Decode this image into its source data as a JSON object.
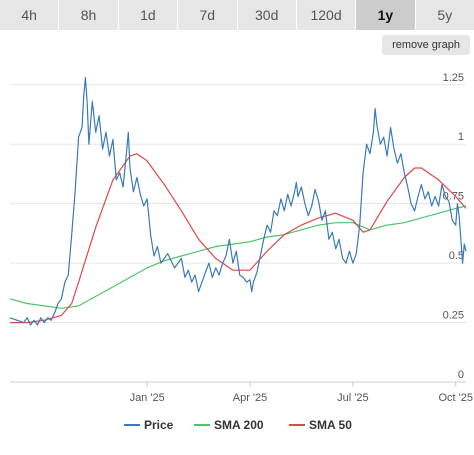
{
  "tabs": [
    {
      "label": "4h"
    },
    {
      "label": "8h"
    },
    {
      "label": "1d"
    },
    {
      "label": "7d"
    },
    {
      "label": "30d"
    },
    {
      "label": "120d"
    },
    {
      "label": "1y",
      "active": true
    },
    {
      "label": "5y"
    }
  ],
  "remove_graph_label": "remove graph",
  "chart_data": {
    "type": "line",
    "y_ticks": [
      "0",
      "0.25",
      "0.5",
      "0.75",
      "1",
      "1.25"
    ],
    "ylim": [
      0,
      1.35
    ],
    "x_labels": [
      {
        "label": "Jan '25",
        "x": 4.0
      },
      {
        "label": "Apr '25",
        "x": 7.0
      },
      {
        "label": "Jul '25",
        "x": 10.0
      },
      {
        "label": "Oct '25",
        "x": 13.0
      }
    ],
    "xlim": [
      0,
      13.3
    ],
    "grid": true,
    "legend_position": "bottom",
    "series": [
      {
        "name": "Price",
        "color": "#3a7ab8",
        "points": [
          [
            0,
            0.27
          ],
          [
            0.2,
            0.26
          ],
          [
            0.4,
            0.25
          ],
          [
            0.5,
            0.27
          ],
          [
            0.6,
            0.24
          ],
          [
            0.7,
            0.26
          ],
          [
            0.8,
            0.24
          ],
          [
            0.9,
            0.27
          ],
          [
            1.0,
            0.25
          ],
          [
            1.1,
            0.27
          ],
          [
            1.2,
            0.26
          ],
          [
            1.3,
            0.29
          ],
          [
            1.4,
            0.33
          ],
          [
            1.5,
            0.35
          ],
          [
            1.6,
            0.42
          ],
          [
            1.7,
            0.45
          ],
          [
            1.8,
            0.62
          ],
          [
            1.9,
            0.8
          ],
          [
            2.0,
            1.03
          ],
          [
            2.1,
            1.07
          ],
          [
            2.15,
            1.2
          ],
          [
            2.2,
            1.28
          ],
          [
            2.25,
            1.18
          ],
          [
            2.3,
            1.0
          ],
          [
            2.4,
            1.18
          ],
          [
            2.5,
            1.05
          ],
          [
            2.6,
            1.12
          ],
          [
            2.7,
            0.98
          ],
          [
            2.8,
            1.05
          ],
          [
            2.9,
            0.95
          ],
          [
            3.0,
            1.02
          ],
          [
            3.1,
            0.85
          ],
          [
            3.2,
            0.88
          ],
          [
            3.3,
            0.82
          ],
          [
            3.4,
            0.97
          ],
          [
            3.45,
            1.05
          ],
          [
            3.5,
            0.9
          ],
          [
            3.6,
            0.8
          ],
          [
            3.7,
            0.86
          ],
          [
            3.8,
            0.79
          ],
          [
            3.9,
            0.74
          ],
          [
            4.0,
            0.77
          ],
          [
            4.1,
            0.62
          ],
          [
            4.2,
            0.53
          ],
          [
            4.3,
            0.57
          ],
          [
            4.4,
            0.5
          ],
          [
            4.6,
            0.54
          ],
          [
            4.8,
            0.48
          ],
          [
            5.0,
            0.52
          ],
          [
            5.1,
            0.44
          ],
          [
            5.2,
            0.47
          ],
          [
            5.3,
            0.42
          ],
          [
            5.4,
            0.45
          ],
          [
            5.5,
            0.38
          ],
          [
            5.6,
            0.42
          ],
          [
            5.7,
            0.46
          ],
          [
            5.8,
            0.5
          ],
          [
            5.9,
            0.44
          ],
          [
            6.0,
            0.48
          ],
          [
            6.1,
            0.45
          ],
          [
            6.2,
            0.5
          ],
          [
            6.3,
            0.53
          ],
          [
            6.4,
            0.6
          ],
          [
            6.5,
            0.5
          ],
          [
            6.6,
            0.55
          ],
          [
            6.7,
            0.45
          ],
          [
            6.8,
            0.44
          ],
          [
            6.9,
            0.42
          ],
          [
            7.0,
            0.43
          ],
          [
            7.05,
            0.38
          ],
          [
            7.1,
            0.42
          ],
          [
            7.2,
            0.46
          ],
          [
            7.3,
            0.53
          ],
          [
            7.4,
            0.6
          ],
          [
            7.5,
            0.66
          ],
          [
            7.6,
            0.63
          ],
          [
            7.7,
            0.72
          ],
          [
            7.8,
            0.7
          ],
          [
            7.9,
            0.77
          ],
          [
            8.0,
            0.72
          ],
          [
            8.1,
            0.79
          ],
          [
            8.2,
            0.74
          ],
          [
            8.3,
            0.8
          ],
          [
            8.35,
            0.84
          ],
          [
            8.4,
            0.78
          ],
          [
            8.5,
            0.82
          ],
          [
            8.6,
            0.75
          ],
          [
            8.7,
            0.7
          ],
          [
            8.8,
            0.74
          ],
          [
            8.9,
            0.81
          ],
          [
            9.0,
            0.76
          ],
          [
            9.1,
            0.68
          ],
          [
            9.2,
            0.72
          ],
          [
            9.3,
            0.6
          ],
          [
            9.4,
            0.63
          ],
          [
            9.5,
            0.56
          ],
          [
            9.6,
            0.6
          ],
          [
            9.7,
            0.52
          ],
          [
            9.8,
            0.5
          ],
          [
            9.9,
            0.55
          ],
          [
            10.0,
            0.5
          ],
          [
            10.1,
            0.54
          ],
          [
            10.2,
            0.66
          ],
          [
            10.3,
            0.88
          ],
          [
            10.4,
            1.0
          ],
          [
            10.5,
            0.96
          ],
          [
            10.6,
            1.05
          ],
          [
            10.65,
            1.15
          ],
          [
            10.7,
            1.08
          ],
          [
            10.8,
            1.0
          ],
          [
            10.9,
            1.03
          ],
          [
            11.0,
            0.95
          ],
          [
            11.1,
            1.07
          ],
          [
            11.2,
            0.98
          ],
          [
            11.3,
            0.92
          ],
          [
            11.4,
            0.96
          ],
          [
            11.5,
            0.88
          ],
          [
            11.6,
            0.82
          ],
          [
            11.7,
            0.75
          ],
          [
            11.8,
            0.72
          ],
          [
            11.9,
            0.78
          ],
          [
            12.0,
            0.83
          ],
          [
            12.1,
            0.77
          ],
          [
            12.2,
            0.8
          ],
          [
            12.3,
            0.74
          ],
          [
            12.4,
            0.78
          ],
          [
            12.5,
            0.74
          ],
          [
            12.6,
            0.83
          ],
          [
            12.7,
            0.78
          ],
          [
            12.8,
            0.76
          ],
          [
            12.9,
            0.68
          ],
          [
            13.0,
            0.66
          ],
          [
            13.05,
            0.75
          ],
          [
            13.1,
            0.7
          ],
          [
            13.2,
            0.5
          ],
          [
            13.25,
            0.58
          ],
          [
            13.3,
            0.55
          ]
        ]
      },
      {
        "name": "SMA 200",
        "color": "#4ec46a",
        "points": [
          [
            0,
            0.35
          ],
          [
            0.5,
            0.33
          ],
          [
            1.0,
            0.32
          ],
          [
            1.5,
            0.31
          ],
          [
            2.0,
            0.32
          ],
          [
            2.5,
            0.36
          ],
          [
            3.0,
            0.4
          ],
          [
            3.5,
            0.44
          ],
          [
            4.0,
            0.48
          ],
          [
            4.5,
            0.51
          ],
          [
            5.0,
            0.53
          ],
          [
            5.5,
            0.55
          ],
          [
            6.0,
            0.57
          ],
          [
            6.5,
            0.58
          ],
          [
            7.0,
            0.59
          ],
          [
            7.5,
            0.61
          ],
          [
            8.0,
            0.62
          ],
          [
            8.5,
            0.64
          ],
          [
            9.0,
            0.66
          ],
          [
            9.5,
            0.67
          ],
          [
            10.0,
            0.67
          ],
          [
            10.5,
            0.64
          ],
          [
            11.0,
            0.66
          ],
          [
            11.5,
            0.67
          ],
          [
            12.0,
            0.69
          ],
          [
            12.5,
            0.71
          ],
          [
            13.0,
            0.73
          ],
          [
            13.3,
            0.74
          ]
        ]
      },
      {
        "name": "SMA 50",
        "color": "#e04848",
        "points": [
          [
            0,
            0.25
          ],
          [
            0.5,
            0.25
          ],
          [
            1.0,
            0.26
          ],
          [
            1.5,
            0.28
          ],
          [
            1.8,
            0.33
          ],
          [
            2.0,
            0.42
          ],
          [
            2.5,
            0.65
          ],
          [
            3.0,
            0.85
          ],
          [
            3.5,
            0.95
          ],
          [
            3.7,
            0.96
          ],
          [
            4.0,
            0.93
          ],
          [
            4.5,
            0.83
          ],
          [
            5.0,
            0.72
          ],
          [
            5.5,
            0.6
          ],
          [
            6.0,
            0.52
          ],
          [
            6.5,
            0.47
          ],
          [
            7.0,
            0.47
          ],
          [
            7.5,
            0.55
          ],
          [
            8.0,
            0.62
          ],
          [
            8.5,
            0.66
          ],
          [
            9.0,
            0.69
          ],
          [
            9.5,
            0.71
          ],
          [
            10.0,
            0.68
          ],
          [
            10.3,
            0.63
          ],
          [
            10.5,
            0.64
          ],
          [
            11.0,
            0.76
          ],
          [
            11.5,
            0.86
          ],
          [
            11.8,
            0.9
          ],
          [
            12.0,
            0.9
          ],
          [
            12.5,
            0.85
          ],
          [
            13.0,
            0.78
          ],
          [
            13.3,
            0.73
          ]
        ]
      }
    ]
  }
}
